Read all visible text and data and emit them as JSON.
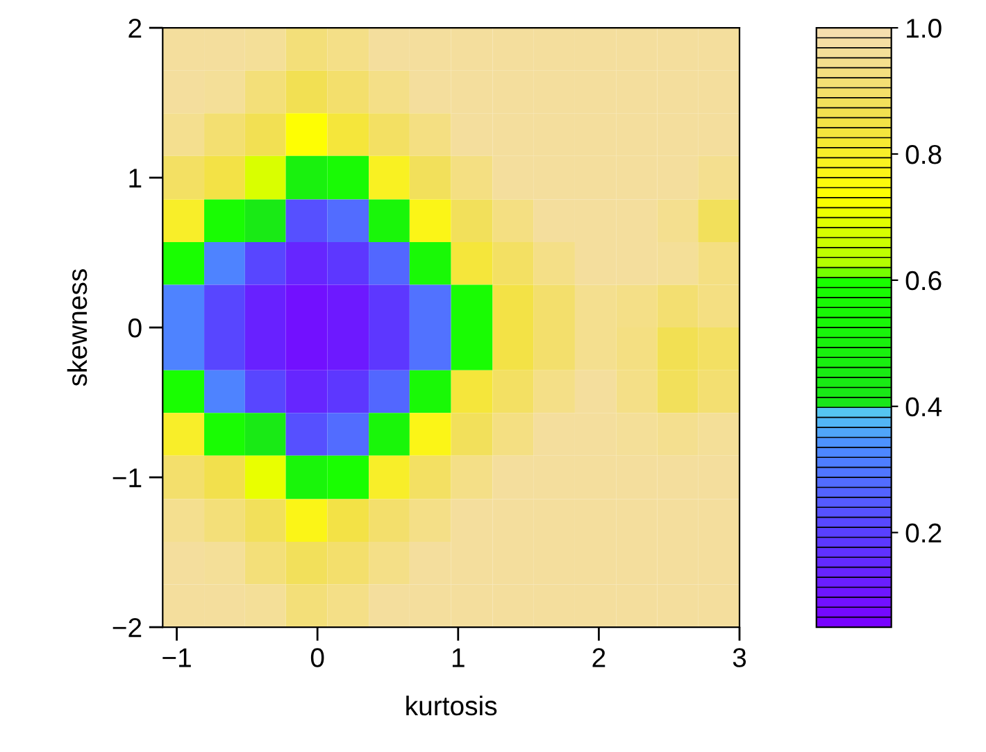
{
  "chart_data": {
    "type": "heatmap",
    "xlabel": "kurtosis",
    "ylabel": "skewness",
    "xlim": [
      -1.1,
      3
    ],
    "ylim": [
      -2,
      2
    ],
    "xticks": [
      -1,
      0,
      1,
      2,
      3
    ],
    "yticks": [
      -2,
      -1,
      0,
      1,
      2
    ],
    "clim": [
      0.05,
      1.0
    ],
    "cticks": [
      0.2,
      0.4,
      0.6,
      0.8,
      {
        "value": 1.0,
        "label": "1.0"
      }
    ],
    "x": [
      -0.95,
      -0.66,
      -0.37,
      -0.08,
      0.22,
      0.51,
      0.8,
      1.1,
      1.39,
      1.68,
      1.98,
      2.27,
      2.56,
      2.85
    ],
    "y": [
      1.86,
      1.57,
      1.29,
      1.0,
      0.71,
      0.43,
      0.14,
      -0.14,
      -0.43,
      -0.71,
      -1.0,
      -1.29,
      -1.57,
      -1.86
    ],
    "cells": [
      [
        0.97,
        0.97,
        0.96,
        0.92,
        0.94,
        0.97,
        0.97,
        0.97,
        0.97,
        0.97,
        0.97,
        0.97,
        0.97,
        0.97
      ],
      [
        0.97,
        0.96,
        0.92,
        0.87,
        0.9,
        0.94,
        0.97,
        0.97,
        0.97,
        0.97,
        0.97,
        0.97,
        0.97,
        0.97
      ],
      [
        0.95,
        0.91,
        0.87,
        0.74,
        0.83,
        0.89,
        0.93,
        0.97,
        0.97,
        0.97,
        0.97,
        0.97,
        0.97,
        0.97
      ],
      [
        0.89,
        0.85,
        0.68,
        0.49,
        0.56,
        0.79,
        0.88,
        0.93,
        0.97,
        0.97,
        0.97,
        0.97,
        0.97,
        0.95
      ],
      [
        0.8,
        0.58,
        0.43,
        0.23,
        0.28,
        0.53,
        0.77,
        0.88,
        0.93,
        0.97,
        0.97,
        0.97,
        0.95,
        0.88
      ],
      [
        0.59,
        0.32,
        0.21,
        0.14,
        0.18,
        0.27,
        0.55,
        0.83,
        0.89,
        0.94,
        0.97,
        0.97,
        0.96,
        0.93
      ],
      [
        0.32,
        0.21,
        0.13,
        0.09,
        0.11,
        0.18,
        0.29,
        0.58,
        0.85,
        0.9,
        0.95,
        0.94,
        0.91,
        0.93
      ],
      [
        0.32,
        0.21,
        0.13,
        0.09,
        0.11,
        0.18,
        0.29,
        0.58,
        0.85,
        0.9,
        0.95,
        0.93,
        0.87,
        0.89
      ],
      [
        0.59,
        0.32,
        0.21,
        0.14,
        0.18,
        0.27,
        0.55,
        0.83,
        0.89,
        0.94,
        0.97,
        0.94,
        0.88,
        0.91
      ],
      [
        0.8,
        0.58,
        0.43,
        0.23,
        0.28,
        0.53,
        0.77,
        0.88,
        0.93,
        0.97,
        0.97,
        0.96,
        0.95,
        0.96
      ],
      [
        0.9,
        0.86,
        0.7,
        0.52,
        0.59,
        0.8,
        0.89,
        0.94,
        0.97,
        0.97,
        0.97,
        0.97,
        0.97,
        0.97
      ],
      [
        0.95,
        0.92,
        0.88,
        0.77,
        0.85,
        0.9,
        0.94,
        0.97,
        0.97,
        0.97,
        0.97,
        0.97,
        0.97,
        0.97
      ],
      [
        0.97,
        0.96,
        0.92,
        0.88,
        0.9,
        0.94,
        0.97,
        0.97,
        0.97,
        0.97,
        0.97,
        0.97,
        0.97,
        0.97
      ],
      [
        0.97,
        0.97,
        0.96,
        0.92,
        0.94,
        0.97,
        0.97,
        0.97,
        0.97,
        0.97,
        0.97,
        0.97,
        0.97,
        0.97
      ]
    ]
  }
}
